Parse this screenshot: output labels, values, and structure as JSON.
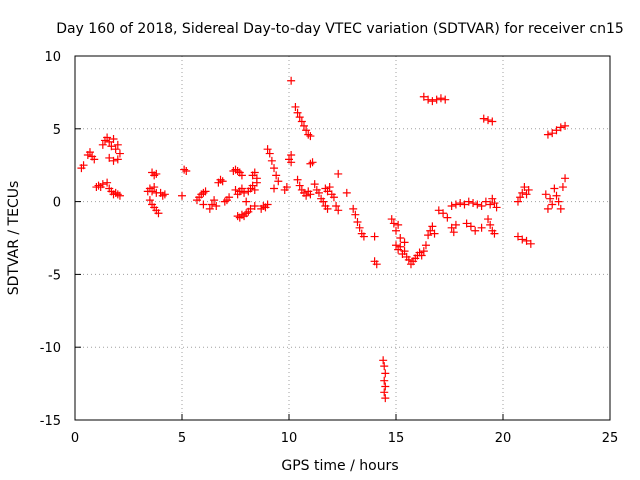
{
  "chart_data": {
    "type": "scatter",
    "title": "Day 160 of 2018, Sidereal Day-to-day VTEC variation (SDTVAR) for receiver cn15",
    "xlabel": "GPS time / hours",
    "ylabel": "SDTVAR / TECUs",
    "xlim": [
      0,
      25
    ],
    "ylim": [
      -15,
      10
    ],
    "xticks": [
      0,
      5,
      10,
      15,
      20,
      25
    ],
    "yticks": [
      -15,
      -10,
      -5,
      0,
      5,
      10
    ],
    "grid": true,
    "marker": "+",
    "color": "#ff0000",
    "series": [
      {
        "name": "SDTVAR",
        "points": [
          [
            0.3,
            2.3
          ],
          [
            0.4,
            2.5
          ],
          [
            0.6,
            3.2
          ],
          [
            0.7,
            3.4
          ],
          [
            0.8,
            3.1
          ],
          [
            0.9,
            2.9
          ],
          [
            1.0,
            1.0
          ],
          [
            1.1,
            1.1
          ],
          [
            1.2,
            1.0
          ],
          [
            1.3,
            1.2
          ],
          [
            1.3,
            3.9
          ],
          [
            1.4,
            4.2
          ],
          [
            1.5,
            4.4
          ],
          [
            1.6,
            4.1
          ],
          [
            1.7,
            3.8
          ],
          [
            1.8,
            4.3
          ],
          [
            1.9,
            3.6
          ],
          [
            2.0,
            3.9
          ],
          [
            2.1,
            3.3
          ],
          [
            1.6,
            3.0
          ],
          [
            1.8,
            2.8
          ],
          [
            2.0,
            2.9
          ],
          [
            1.5,
            1.3
          ],
          [
            1.6,
            0.9
          ],
          [
            1.7,
            0.7
          ],
          [
            1.8,
            0.5
          ],
          [
            1.9,
            0.6
          ],
          [
            2.0,
            0.5
          ],
          [
            2.1,
            0.4
          ],
          [
            3.4,
            0.7
          ],
          [
            3.5,
            0.9
          ],
          [
            3.6,
            0.7
          ],
          [
            3.7,
            1.0
          ],
          [
            3.8,
            0.6
          ],
          [
            3.5,
            0.1
          ],
          [
            3.6,
            -0.2
          ],
          [
            3.7,
            -0.4
          ],
          [
            3.8,
            -0.6
          ],
          [
            3.9,
            -0.8
          ],
          [
            3.6,
            2.0
          ],
          [
            3.7,
            1.8
          ],
          [
            3.8,
            1.9
          ],
          [
            4.0,
            0.6
          ],
          [
            4.1,
            0.4
          ],
          [
            4.2,
            0.5
          ],
          [
            5.1,
            2.2
          ],
          [
            5.2,
            2.1
          ],
          [
            5.0,
            0.4
          ],
          [
            5.7,
            0.1
          ],
          [
            5.8,
            0.3
          ],
          [
            5.9,
            0.5
          ],
          [
            6.0,
            0.6
          ],
          [
            6.1,
            0.7
          ],
          [
            6.0,
            -0.2
          ],
          [
            6.3,
            -0.5
          ],
          [
            6.4,
            -0.2
          ],
          [
            6.5,
            0.1
          ],
          [
            6.6,
            -0.3
          ],
          [
            6.7,
            1.3
          ],
          [
            6.8,
            1.5
          ],
          [
            6.9,
            1.4
          ],
          [
            7.0,
            0.0
          ],
          [
            7.1,
            0.1
          ],
          [
            7.2,
            0.3
          ],
          [
            7.4,
            2.1
          ],
          [
            7.5,
            2.2
          ],
          [
            7.6,
            2.1
          ],
          [
            7.7,
            2.0
          ],
          [
            7.8,
            1.8
          ],
          [
            7.5,
            0.8
          ],
          [
            7.6,
            0.5
          ],
          [
            7.7,
            0.7
          ],
          [
            7.8,
            0.9
          ],
          [
            7.9,
            0.6
          ],
          [
            7.6,
            -1.0
          ],
          [
            7.7,
            -1.1
          ],
          [
            7.8,
            -0.9
          ],
          [
            7.9,
            -1.0
          ],
          [
            8.0,
            -0.8
          ],
          [
            8.1,
            -0.7
          ],
          [
            8.1,
            0.7
          ],
          [
            8.2,
            0.9
          ],
          [
            8.3,
            1.1
          ],
          [
            8.4,
            0.8
          ],
          [
            8.5,
            1.3
          ],
          [
            8.2,
            -0.5
          ],
          [
            8.4,
            -0.3
          ],
          [
            8.0,
            0.0
          ],
          [
            8.3,
            1.8
          ],
          [
            8.4,
            2.0
          ],
          [
            8.5,
            1.6
          ],
          [
            8.7,
            -0.5
          ],
          [
            8.8,
            -0.3
          ],
          [
            8.9,
            -0.4
          ],
          [
            9.0,
            -0.2
          ],
          [
            9.0,
            3.6
          ],
          [
            9.1,
            3.3
          ],
          [
            9.2,
            2.8
          ],
          [
            9.3,
            2.3
          ],
          [
            9.4,
            1.8
          ],
          [
            9.5,
            1.4
          ],
          [
            9.3,
            0.9
          ],
          [
            9.8,
            0.8
          ],
          [
            9.9,
            1.0
          ],
          [
            10.0,
            2.9
          ],
          [
            10.1,
            2.7
          ],
          [
            10.1,
            3.2
          ],
          [
            10.1,
            8.3
          ],
          [
            10.3,
            6.5
          ],
          [
            10.4,
            6.1
          ],
          [
            10.5,
            5.8
          ],
          [
            10.6,
            5.5
          ],
          [
            10.7,
            5.2
          ],
          [
            10.8,
            4.9
          ],
          [
            10.9,
            4.6
          ],
          [
            11.0,
            4.5
          ],
          [
            10.4,
            1.5
          ],
          [
            10.5,
            1.1
          ],
          [
            10.6,
            0.8
          ],
          [
            10.7,
            0.6
          ],
          [
            10.8,
            0.4
          ],
          [
            10.9,
            0.7
          ],
          [
            11.0,
            0.5
          ],
          [
            11.0,
            2.6
          ],
          [
            11.1,
            2.7
          ],
          [
            11.2,
            1.2
          ],
          [
            11.3,
            0.8
          ],
          [
            11.4,
            0.6
          ],
          [
            11.5,
            0.2
          ],
          [
            11.6,
            0.0
          ],
          [
            11.7,
            -0.3
          ],
          [
            11.8,
            -0.5
          ],
          [
            11.7,
            0.9
          ],
          [
            11.8,
            0.7
          ],
          [
            11.9,
            1.0
          ],
          [
            12.0,
            0.5
          ],
          [
            12.1,
            0.3
          ],
          [
            12.2,
            -0.3
          ],
          [
            12.3,
            -0.6
          ],
          [
            12.3,
            1.9
          ],
          [
            12.7,
            0.6
          ],
          [
            13.0,
            -0.5
          ],
          [
            13.1,
            -0.9
          ],
          [
            13.2,
            -1.4
          ],
          [
            13.3,
            -1.8
          ],
          [
            13.4,
            -2.2
          ],
          [
            13.5,
            -2.4
          ],
          [
            14.0,
            -2.4
          ],
          [
            14.0,
            -4.1
          ],
          [
            14.1,
            -4.3
          ],
          [
            14.4,
            -10.9
          ],
          [
            14.45,
            -11.3
          ],
          [
            14.5,
            -11.8
          ],
          [
            14.45,
            -12.3
          ],
          [
            14.5,
            -12.7
          ],
          [
            14.45,
            -13.1
          ],
          [
            14.5,
            -13.5
          ],
          [
            14.8,
            -1.2
          ],
          [
            14.9,
            -1.5
          ],
          [
            15.0,
            -2.0
          ],
          [
            15.1,
            -1.6
          ],
          [
            15.0,
            -3.0
          ],
          [
            15.1,
            -3.3
          ],
          [
            15.2,
            -3.1
          ],
          [
            15.3,
            -3.6
          ],
          [
            15.4,
            -3.4
          ],
          [
            15.5,
            -3.8
          ],
          [
            15.6,
            -4.0
          ],
          [
            15.7,
            -4.3
          ],
          [
            15.8,
            -4.1
          ],
          [
            15.9,
            -3.9
          ],
          [
            16.0,
            -3.7
          ],
          [
            16.1,
            -3.5
          ],
          [
            16.2,
            -3.7
          ],
          [
            16.3,
            -3.4
          ],
          [
            16.4,
            -3.0
          ],
          [
            15.2,
            -2.5
          ],
          [
            15.4,
            -2.8
          ],
          [
            16.5,
            -2.3
          ],
          [
            16.6,
            -2.0
          ],
          [
            16.7,
            -1.7
          ],
          [
            16.8,
            -2.2
          ],
          [
            16.3,
            7.2
          ],
          [
            16.5,
            7.0
          ],
          [
            16.7,
            6.9
          ],
          [
            16.9,
            7.0
          ],
          [
            17.1,
            7.1
          ],
          [
            17.3,
            7.0
          ],
          [
            17.0,
            -0.6
          ],
          [
            17.2,
            -0.8
          ],
          [
            17.4,
            -1.1
          ],
          [
            17.6,
            -1.8
          ],
          [
            17.7,
            -2.1
          ],
          [
            17.8,
            -1.6
          ],
          [
            17.6,
            -0.3
          ],
          [
            17.8,
            -0.2
          ],
          [
            18.0,
            -0.1
          ],
          [
            18.2,
            -0.2
          ],
          [
            18.4,
            0.0
          ],
          [
            18.6,
            -0.1
          ],
          [
            18.8,
            -0.2
          ],
          [
            19.0,
            -0.3
          ],
          [
            19.2,
            0.0
          ],
          [
            19.4,
            -0.2
          ],
          [
            18.3,
            -1.5
          ],
          [
            18.5,
            -1.7
          ],
          [
            18.7,
            -2.0
          ],
          [
            19.0,
            -1.8
          ],
          [
            19.3,
            -1.2
          ],
          [
            19.4,
            -1.6
          ],
          [
            19.5,
            -2.0
          ],
          [
            19.6,
            -2.2
          ],
          [
            19.5,
            0.2
          ],
          [
            19.6,
            -0.1
          ],
          [
            19.7,
            -0.4
          ],
          [
            19.1,
            5.7
          ],
          [
            19.3,
            5.6
          ],
          [
            19.5,
            5.5
          ],
          [
            20.7,
            0.0
          ],
          [
            20.8,
            0.3
          ],
          [
            20.9,
            0.6
          ],
          [
            21.0,
            1.0
          ],
          [
            21.1,
            0.5
          ],
          [
            21.2,
            0.8
          ],
          [
            20.7,
            -2.4
          ],
          [
            20.9,
            -2.6
          ],
          [
            21.1,
            -2.7
          ],
          [
            21.3,
            -2.9
          ],
          [
            22.0,
            0.5
          ],
          [
            22.1,
            -0.5
          ],
          [
            22.2,
            0.2
          ],
          [
            22.3,
            -0.2
          ],
          [
            22.4,
            0.9
          ],
          [
            22.5,
            0.4
          ],
          [
            22.6,
            0.0
          ],
          [
            22.7,
            -0.5
          ],
          [
            22.8,
            1.0
          ],
          [
            22.9,
            1.6
          ],
          [
            22.1,
            4.6
          ],
          [
            22.3,
            4.7
          ],
          [
            22.5,
            4.9
          ],
          [
            22.7,
            5.1
          ],
          [
            22.9,
            5.2
          ]
        ]
      }
    ]
  }
}
